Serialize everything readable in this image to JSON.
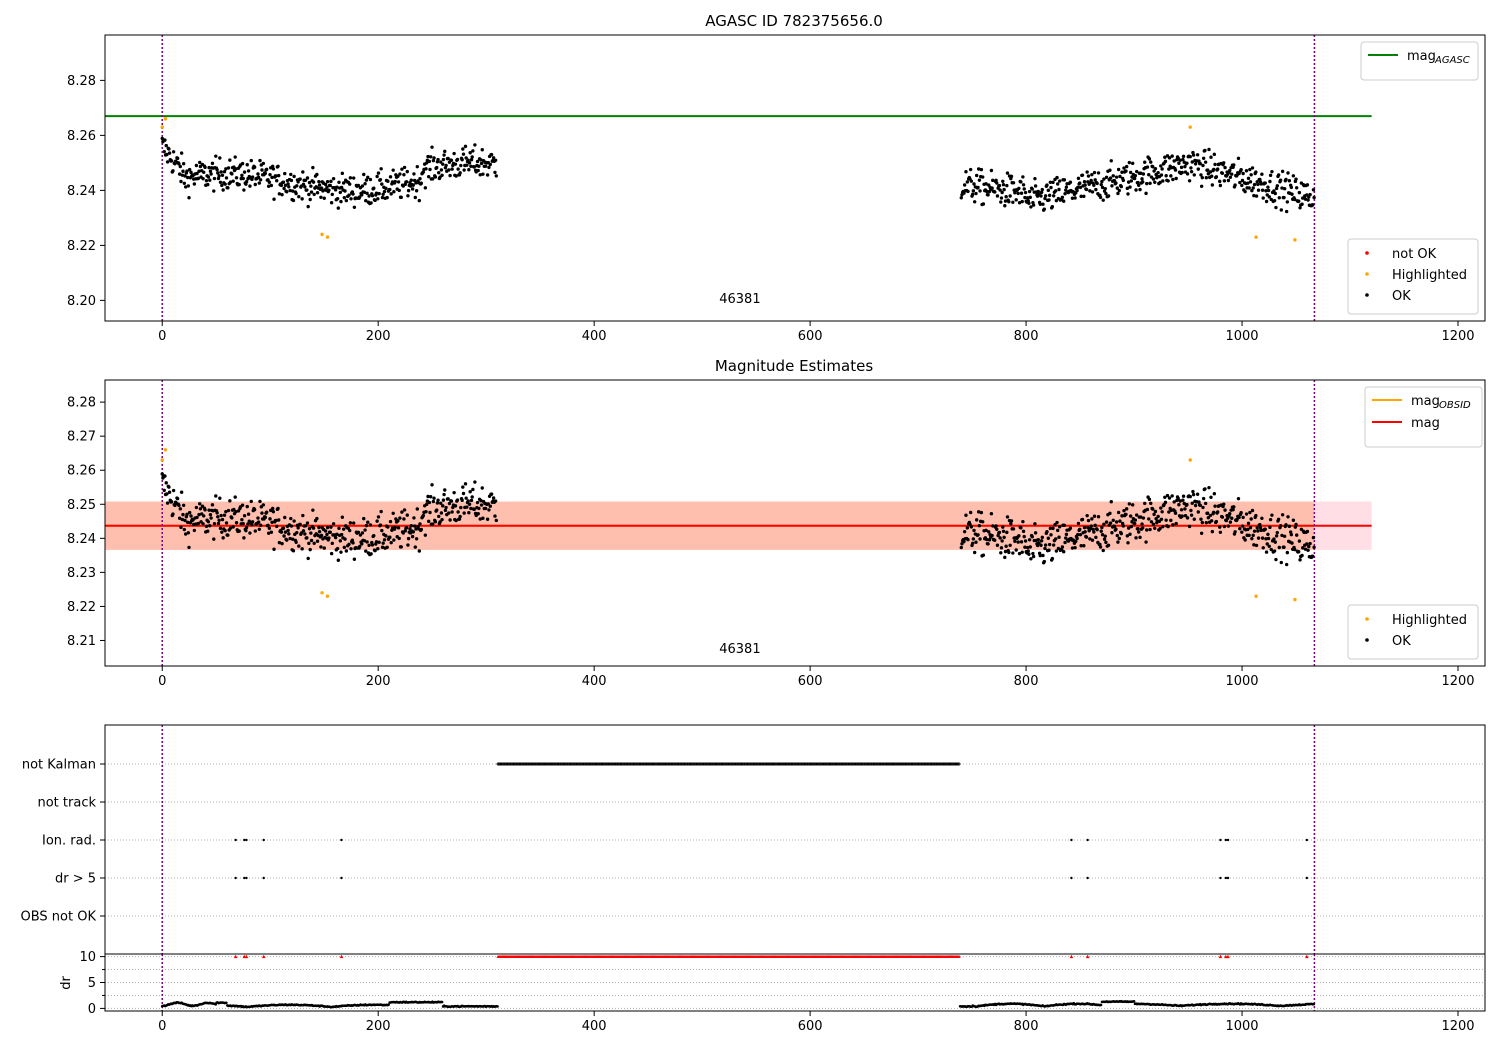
{
  "chart_data": [
    {
      "type": "scatter",
      "title": "AGASC ID 782375656.0",
      "xlim": [
        -53,
        1225
      ],
      "ylim": [
        8.1925,
        8.2965
      ],
      "x_ticks": [
        "0",
        "200",
        "400",
        "600",
        "800",
        "1000",
        "1200"
      ],
      "y_ticks": [
        "8.20",
        "8.22",
        "8.24",
        "8.26",
        "8.28"
      ],
      "annotation": {
        "text": "46381",
        "x": 535,
        "y": 8.1955
      },
      "vlines": [
        0,
        1067
      ],
      "hlines": [
        {
          "name_main": "mag",
          "name_sub": "AGASC",
          "y": 8.267,
          "x0": -53,
          "x1": 1120,
          "color": "#008000"
        }
      ],
      "legend_top": [
        {
          "name_main": "mag",
          "name_sub": "AGASC",
          "color": "#008000",
          "kind": "line"
        }
      ],
      "legend_bottom": [
        {
          "name": "not OK",
          "color": "#ff0000",
          "kind": "dot"
        },
        {
          "name": "Highlighted",
          "color": "#ffa500",
          "kind": "dot"
        },
        {
          "name": "OK",
          "color": "#000000",
          "kind": "dot"
        }
      ],
      "highlighted_points": [
        [
          0,
          8.263
        ],
        [
          3,
          8.266
        ],
        [
          148,
          8.224
        ],
        [
          153,
          8.223
        ],
        [
          952,
          8.263
        ],
        [
          1013,
          8.223
        ],
        [
          1049,
          8.222
        ]
      ]
    },
    {
      "type": "scatter",
      "title": "Magnitude Estimates",
      "xlim": [
        -53,
        1225
      ],
      "ylim": [
        8.2025,
        8.2865
      ],
      "x_ticks": [
        "0",
        "200",
        "400",
        "600",
        "800",
        "1000",
        "1200"
      ],
      "y_ticks": [
        "8.21",
        "8.22",
        "8.23",
        "8.24",
        "8.25",
        "8.26",
        "8.27",
        "8.28"
      ],
      "annotation": {
        "text": "46381",
        "x": 535,
        "y": 8.2045
      },
      "vlines": [
        0,
        1067
      ],
      "hlines": [
        {
          "name_main": "mag",
          "name_sub": "OBSID",
          "y": 8.2437,
          "x0": -53,
          "x1": 1067,
          "color": "#ffa500"
        },
        {
          "name_main": "mag",
          "name_sub": "",
          "y": 8.2437,
          "x0": -53,
          "x1": 1120,
          "color": "#ff0000"
        }
      ],
      "bands": [
        {
          "y0": 8.2366,
          "y1": 8.2508,
          "x0": -53,
          "x1": 1120,
          "color": "#ffc0cb"
        },
        {
          "y0": 8.2366,
          "y1": 8.2508,
          "x0": -53,
          "x1": 1067,
          "color": "#ffa07a"
        }
      ],
      "legend_top": [
        {
          "name_main": "mag",
          "name_sub": "OBSID",
          "color": "#ffa500",
          "kind": "line"
        },
        {
          "name_main": "mag",
          "name_sub": "",
          "color": "#ff0000",
          "kind": "line"
        }
      ],
      "legend_bottom": [
        {
          "name": "Highlighted",
          "color": "#ffa500",
          "kind": "dot"
        },
        {
          "name": "OK",
          "color": "#000000",
          "kind": "dot"
        }
      ],
      "highlighted_points": [
        [
          0,
          8.263
        ],
        [
          3,
          8.266
        ],
        [
          148,
          8.224
        ],
        [
          153,
          8.223
        ],
        [
          952,
          8.263
        ],
        [
          1013,
          8.223
        ],
        [
          1049,
          8.222
        ]
      ]
    },
    {
      "type": "scatter",
      "title": "",
      "xlim": [
        -53,
        1225
      ],
      "categories": [
        "not Kalman",
        "not track",
        "Ion. rad.",
        "dr > 5",
        "OBS not OK"
      ],
      "vlines": [
        0,
        1067
      ],
      "flags": {
        "not_kalman_range": [
          311,
          738
        ],
        "ion_rad_x": [
          68,
          76,
          78,
          94,
          166,
          842,
          857,
          980,
          985,
          987,
          1060
        ],
        "dr_gt5_x": [
          68,
          76,
          78,
          94,
          166,
          842,
          857,
          980,
          985,
          987,
          1060
        ]
      }
    },
    {
      "type": "scatter",
      "title": "",
      "xlim": [
        -53,
        1225
      ],
      "ylim": [
        -0.5,
        10.5
      ],
      "ylabel": "dr",
      "x_ticks": [
        "0",
        "200",
        "400",
        "600",
        "800",
        "1000",
        "1200"
      ],
      "y_ticks": [
        "0",
        "5",
        "10"
      ],
      "gap_range": [
        311,
        738
      ],
      "red_marker_x": [
        68,
        76,
        78,
        94,
        166,
        842,
        857,
        980,
        985,
        987,
        1060
      ]
    }
  ]
}
